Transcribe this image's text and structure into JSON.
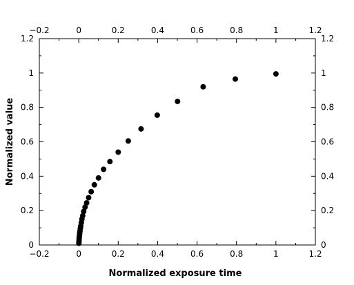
{
  "chart_data": {
    "type": "scatter",
    "title": "",
    "xlabel": "Normalized exposure time",
    "ylabel": "Normalized value",
    "xlim": [
      -0.2,
      1.2
    ],
    "ylim": [
      0,
      1.2
    ],
    "x_ticks": [
      -0.2,
      0,
      0.2,
      0.4,
      0.6,
      0.8,
      1,
      1.2
    ],
    "x_tick_labels": [
      "−0.2",
      "0",
      "0.2",
      "0.4",
      "0.6",
      "0.8",
      "1",
      "1.2"
    ],
    "y_ticks": [
      0,
      0.2,
      0.4,
      0.6,
      0.8,
      1,
      1.2
    ],
    "y_tick_labels": [
      "0",
      "0.2",
      "0.4",
      "0.6",
      "0.8",
      "1",
      "1.2"
    ],
    "mirror_top_axis": true,
    "mirror_right_axis": true,
    "grid": false,
    "legend": false,
    "marker_color": "#000000",
    "series": [
      {
        "x": [
          0.0005,
          0.001,
          0.0015,
          0.002,
          0.003,
          0.004,
          0.005,
          0.006,
          0.008,
          0.01,
          0.013,
          0.016,
          0.02,
          0.025,
          0.032,
          0.04,
          0.05,
          0.063,
          0.079,
          0.1,
          0.126,
          0.158,
          0.2,
          0.251,
          0.316,
          0.398,
          0.501,
          0.631,
          0.794,
          1.0
        ],
        "y": [
          0.01,
          0.02,
          0.03,
          0.04,
          0.05,
          0.06,
          0.07,
          0.08,
          0.095,
          0.11,
          0.13,
          0.15,
          0.17,
          0.195,
          0.22,
          0.245,
          0.275,
          0.31,
          0.35,
          0.39,
          0.44,
          0.485,
          0.54,
          0.605,
          0.675,
          0.755,
          0.835,
          0.92,
          0.965,
          0.995
        ]
      }
    ]
  }
}
